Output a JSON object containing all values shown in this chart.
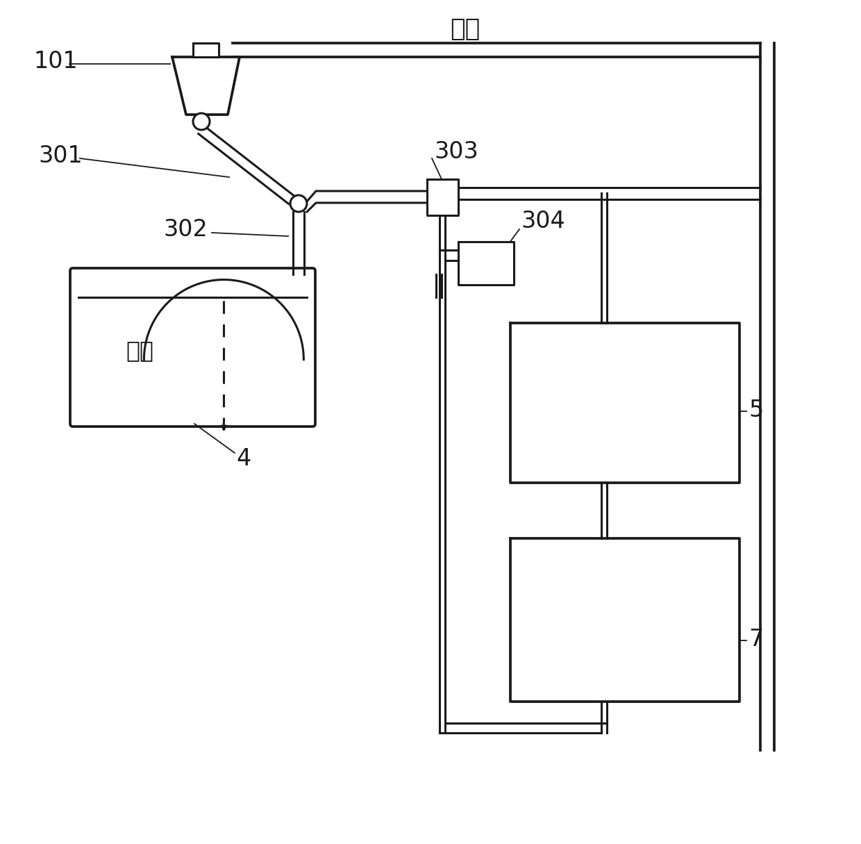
{
  "title": "驱动",
  "label_101": "101",
  "label_301": "301",
  "label_302": "302",
  "label_303": "303",
  "label_304": "304",
  "label_4": "4",
  "label_5": "5",
  "label_7": "7",
  "finger_text": "手指",
  "bg_color": "#ffffff",
  "line_color": "#1a1a1a",
  "lw_main": 2.2,
  "lw_thin": 1.3
}
